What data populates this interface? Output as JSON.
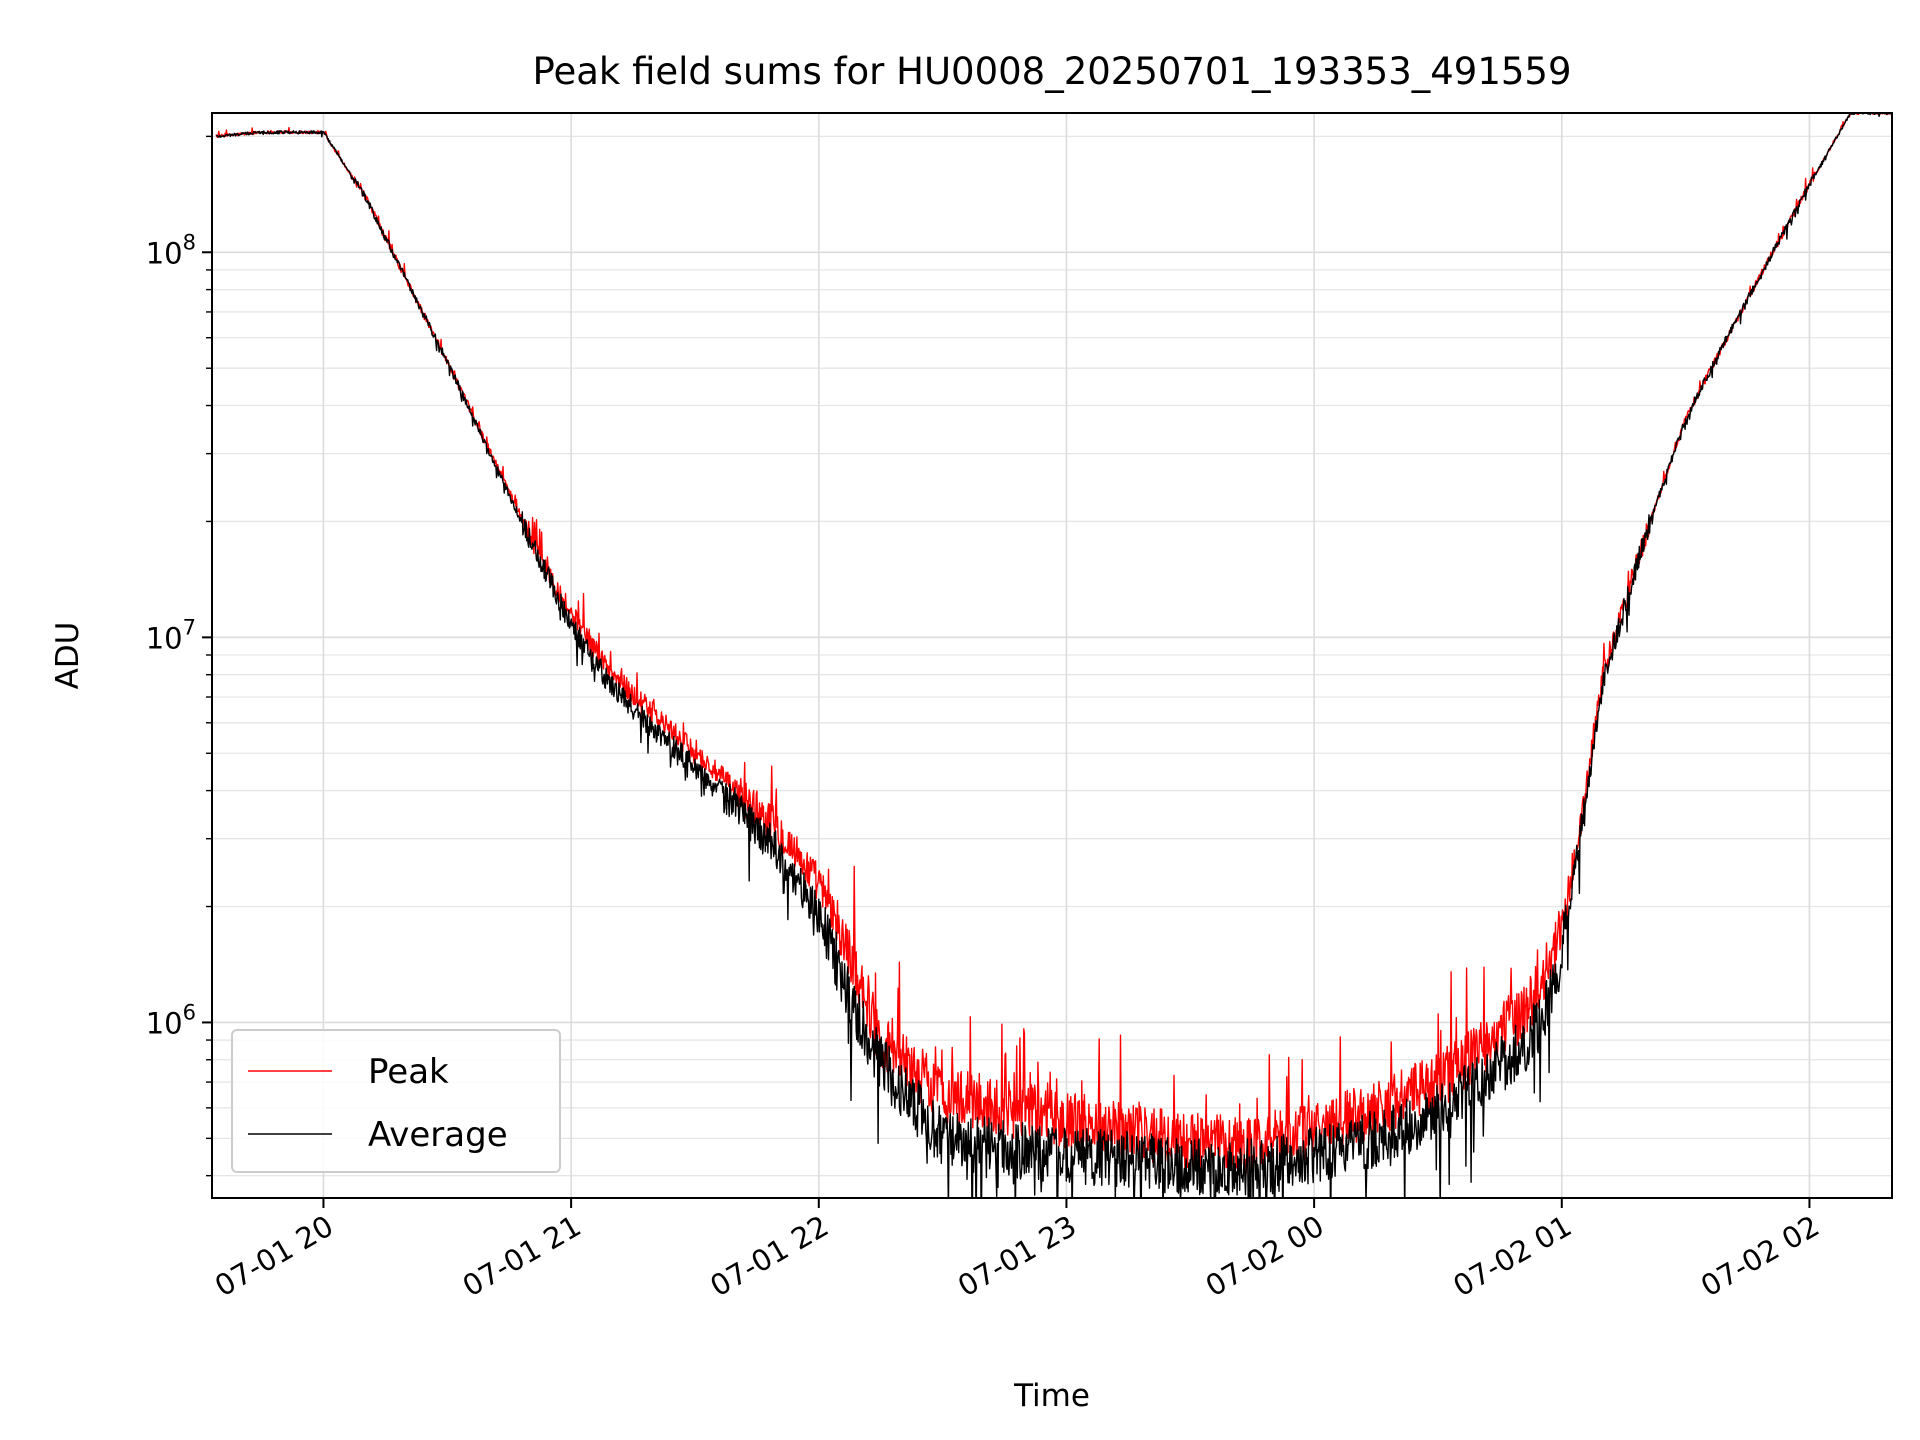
{
  "chart_data": {
    "type": "line",
    "title": "Peak field sums for HU0008_20250701_193353_491559",
    "xlabel": "Time",
    "ylabel": "ADU",
    "x_tick_labels": [
      "07-01 20",
      "07-01 21",
      "07-01 22",
      "07-01 23",
      "07-02 00",
      "07-02 01",
      "07-02 02"
    ],
    "y_tick_labels": [
      {
        "base": "10",
        "exp": "6"
      },
      {
        "base": "10",
        "exp": "7"
      },
      {
        "base": "10",
        "exp": "8"
      }
    ],
    "y_scale": "log",
    "ylim": [
      350000,
      230000000
    ],
    "xlim": [
      "2025-07-01 19:33",
      "2025-07-02 02:20"
    ],
    "grid": true,
    "legend_position": "lower-left",
    "colors": {
      "Peak": "#ff0000",
      "Average": "#000000"
    },
    "series": [
      {
        "name": "Peak",
        "x": [
          "2025-07-01 19:34",
          "2025-07-01 19:45",
          "2025-07-01 19:55",
          "2025-07-01 20:00",
          "2025-07-01 20:10",
          "2025-07-01 20:20",
          "2025-07-01 20:30",
          "2025-07-01 20:40",
          "2025-07-01 20:50",
          "2025-07-01 21:00",
          "2025-07-01 21:10",
          "2025-07-01 21:20",
          "2025-07-01 21:30",
          "2025-07-01 21:40",
          "2025-07-01 21:50",
          "2025-07-01 22:00",
          "2025-07-01 22:10",
          "2025-07-01 22:15",
          "2025-07-01 22:30",
          "2025-07-01 22:45",
          "2025-07-01 23:00",
          "2025-07-01 23:15",
          "2025-07-01 23:30",
          "2025-07-01 23:45",
          "2025-07-02 00:00",
          "2025-07-02 00:15",
          "2025-07-02 00:30",
          "2025-07-02 00:40",
          "2025-07-02 00:50",
          "2025-07-02 00:55",
          "2025-07-02 01:00",
          "2025-07-02 01:05",
          "2025-07-02 01:10",
          "2025-07-02 01:20",
          "2025-07-02 01:30",
          "2025-07-02 01:40",
          "2025-07-02 01:50",
          "2025-07-02 02:00",
          "2025-07-02 02:10",
          "2025-07-02 02:20"
        ],
        "values": [
          200000000,
          205000000,
          205000000,
          205000000,
          140000000,
          85000000,
          52000000,
          31000000,
          18500000,
          11500000,
          8000000,
          6300000,
          5000000,
          4000000,
          3200000,
          2300000,
          1300000,
          900000,
          650000,
          600000,
          560000,
          530000,
          490000,
          480000,
          530000,
          600000,
          700000,
          850000,
          1050000,
          1250000,
          1700000,
          3500000,
          8000000,
          18000000,
          37000000,
          60000000,
          95000000,
          150000000,
          230000000,
          230000000
        ]
      },
      {
        "name": "Average",
        "x": [
          "2025-07-01 19:34",
          "2025-07-01 19:45",
          "2025-07-01 19:55",
          "2025-07-01 20:00",
          "2025-07-01 20:10",
          "2025-07-01 20:20",
          "2025-07-01 20:30",
          "2025-07-01 20:40",
          "2025-07-01 20:50",
          "2025-07-01 21:00",
          "2025-07-01 21:10",
          "2025-07-01 21:20",
          "2025-07-01 21:30",
          "2025-07-01 21:40",
          "2025-07-01 21:50",
          "2025-07-01 22:00",
          "2025-07-01 22:10",
          "2025-07-01 22:15",
          "2025-07-01 22:30",
          "2025-07-01 22:45",
          "2025-07-01 23:00",
          "2025-07-01 23:15",
          "2025-07-01 23:30",
          "2025-07-01 23:45",
          "2025-07-02 00:00",
          "2025-07-02 00:15",
          "2025-07-02 00:30",
          "2025-07-02 00:40",
          "2025-07-02 00:50",
          "2025-07-02 00:55",
          "2025-07-02 01:00",
          "2025-07-02 01:05",
          "2025-07-02 01:10",
          "2025-07-02 01:20",
          "2025-07-02 01:30",
          "2025-07-02 01:40",
          "2025-07-02 01:50",
          "2025-07-02 02:00",
          "2025-07-02 02:10",
          "2025-07-02 02:20"
        ],
        "values": [
          200000000,
          205000000,
          205000000,
          205000000,
          140000000,
          85000000,
          52000000,
          30500000,
          18000000,
          10800000,
          7400000,
          5800000,
          4600000,
          3600000,
          2800000,
          1900000,
          1000000,
          780000,
          500000,
          470000,
          450000,
          440000,
          420000,
          420000,
          450000,
          500000,
          580000,
          700000,
          850000,
          1000000,
          1500000,
          3300000,
          7700000,
          18000000,
          37000000,
          60000000,
          95000000,
          150000000,
          230000000,
          230000000
        ]
      }
    ]
  }
}
